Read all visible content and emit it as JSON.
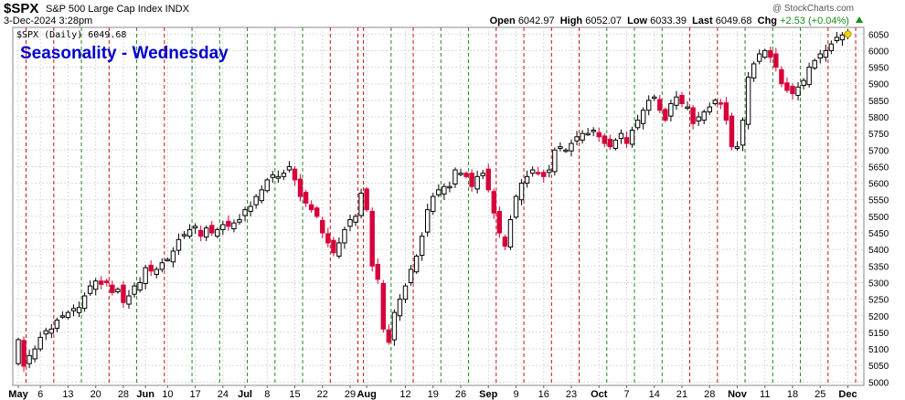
{
  "header": {
    "symbol": "$SPX",
    "description": "S&P 500 Large Cap Index  INDX",
    "watermark": "@ StockCharts.com",
    "datetime": "3-Dec-2024 3:28pm",
    "open_label": "Open",
    "open": "6042.97",
    "high_label": "High",
    "high": "6052.07",
    "low_label": "Low",
    "low": "6033.39",
    "last_label": "Last",
    "last": "6049.68",
    "chg_label": "Chg",
    "chg": "+2.53 (+0.04%)"
  },
  "colors": {
    "up": "#000000",
    "down": "#d6003a",
    "grid": "#d9d9d9",
    "line_green": "#1e8c1e",
    "line_red": "#cc1111",
    "title": "#0000d0"
  },
  "chart_data": {
    "type": "candlestick",
    "title": "Seasonality - Wednesday",
    "legend": "$SPX (Daily) 6049.68",
    "ylim": [
      4990,
      6070
    ],
    "yticks": [
      5000,
      5050,
      5100,
      5150,
      5200,
      5250,
      5300,
      5350,
      5400,
      5450,
      5500,
      5550,
      5600,
      5650,
      5700,
      5750,
      5800,
      5850,
      5900,
      5950,
      6000,
      6050
    ],
    "xtick_labels": [
      "May",
      "6",
      "13",
      "20",
      "28",
      "Jun",
      "10",
      "17",
      "24",
      "Jul",
      "8",
      "15",
      "22",
      "29",
      "Aug",
      "12",
      "19",
      "26",
      "Sep",
      "9",
      "16",
      "23",
      "Oct",
      "7",
      "14",
      "21",
      "28",
      "Nov",
      "11",
      "18",
      "25",
      "Dec"
    ],
    "xtick_positions": [
      0,
      4,
      9,
      14,
      19,
      23,
      27,
      32,
      37,
      41,
      45,
      50,
      55,
      60,
      63,
      70,
      75,
      80,
      85,
      90,
      95,
      100,
      105,
      110,
      115,
      120,
      125,
      130,
      135,
      140,
      145,
      150
    ],
    "bold_ticks": [
      "May",
      "Jun",
      "Jul",
      "Aug",
      "Sep",
      "Oct",
      "Nov",
      "Dec"
    ],
    "vertical_markers": [
      {
        "i": 1,
        "color": "red"
      },
      {
        "i": 6,
        "color": "red"
      },
      {
        "i": 11,
        "color": "green"
      },
      {
        "i": 16,
        "color": "red"
      },
      {
        "i": 21,
        "color": "green"
      },
      {
        "i": 26,
        "color": "red"
      },
      {
        "i": 31,
        "color": "green"
      },
      {
        "i": 36,
        "color": "green"
      },
      {
        "i": 41,
        "color": "green"
      },
      {
        "i": 46,
        "color": "green"
      },
      {
        "i": 51,
        "color": "green"
      },
      {
        "i": 56,
        "color": "red"
      },
      {
        "i": 61,
        "color": "red"
      },
      {
        "i": 62,
        "color": "red"
      },
      {
        "i": 67,
        "color": "green"
      },
      {
        "i": 71,
        "color": "red"
      },
      {
        "i": 76,
        "color": "green"
      },
      {
        "i": 81,
        "color": "green"
      },
      {
        "i": 86,
        "color": "red"
      },
      {
        "i": 91,
        "color": "red"
      },
      {
        "i": 96,
        "color": "red"
      },
      {
        "i": 101,
        "color": "red"
      },
      {
        "i": 106,
        "color": "green"
      },
      {
        "i": 111,
        "color": "green"
      },
      {
        "i": 116,
        "color": "green"
      },
      {
        "i": 121,
        "color": "red"
      },
      {
        "i": 126,
        "color": "red"
      },
      {
        "i": 131,
        "color": "green"
      },
      {
        "i": 136,
        "color": "green"
      },
      {
        "i": 141,
        "color": "green"
      },
      {
        "i": 146,
        "color": "red"
      },
      {
        "i": 151,
        "color": "red"
      }
    ],
    "closes": [
      5128,
      5048,
      5080,
      5100,
      5135,
      5155,
      5160,
      5187,
      5200,
      5210,
      5222,
      5225,
      5260,
      5290,
      5305,
      5295,
      5300,
      5270,
      5280,
      5240,
      5260,
      5290,
      5300,
      5345,
      5335,
      5340,
      5360,
      5370,
      5395,
      5430,
      5445,
      5460,
      5470,
      5440,
      5465,
      5450,
      5460,
      5475,
      5470,
      5480,
      5490,
      5520,
      5530,
      5560,
      5580,
      5610,
      5625,
      5620,
      5630,
      5650,
      5610,
      5560,
      5540,
      5520,
      5500,
      5450,
      5420,
      5390,
      5420,
      5460,
      5490,
      5500,
      5570,
      5520,
      5350,
      5310,
      5160,
      5120,
      5210,
      5250,
      5290,
      5340,
      5380,
      5440,
      5520,
      5560,
      5580,
      5590,
      5590,
      5640,
      5630,
      5620,
      5590,
      5620,
      5630,
      5580,
      5510,
      5450,
      5410,
      5490,
      5560,
      5600,
      5620,
      5640,
      5630,
      5620,
      5640,
      5700,
      5710,
      5700,
      5720,
      5740,
      5750,
      5750,
      5760,
      5740,
      5720,
      5710,
      5730,
      5750,
      5720,
      5760,
      5790,
      5820,
      5850,
      5860,
      5820,
      5790,
      5840,
      5860,
      5840,
      5830,
      5780,
      5800,
      5815,
      5830,
      5850,
      5840,
      5790,
      5710,
      5710,
      5790,
      5920,
      5960,
      5990,
      6000,
      5980,
      5950,
      5900,
      5880,
      5870,
      5890,
      5910,
      5950,
      5970,
      5990,
      6000,
      6020,
      6040,
      6047,
      6049.68
    ]
  }
}
